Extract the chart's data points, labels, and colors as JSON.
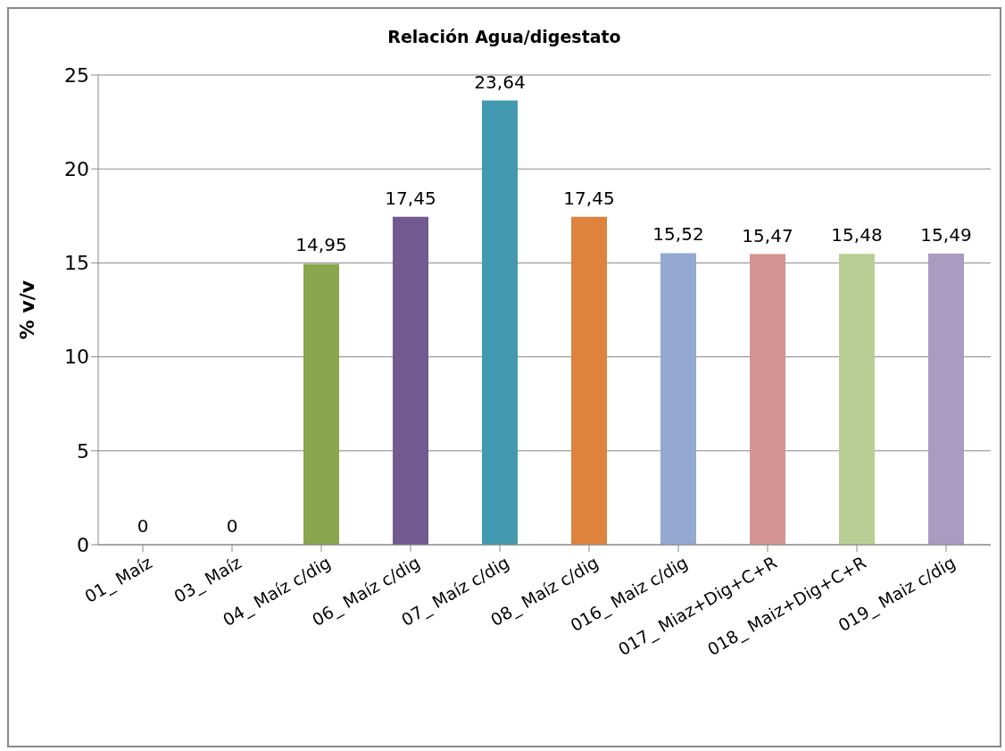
{
  "chart_data": {
    "type": "bar",
    "title": "Relación Agua/digestato",
    "ylabel": "% v/v",
    "categories": [
      "01_ Maíz",
      "03_ Maíz",
      "04_ Maíz c/dig",
      "06_ Maíz c/dig",
      "07_ Maíz c/dig",
      "08_ Maíz c/dig",
      "016_ Maiz c/dig",
      "017_ Miaz+Dig+C+R",
      "018_ Maiz+Dig+C+R",
      "019_ Maiz c/dig"
    ],
    "values": [
      0,
      0,
      14.95,
      17.45,
      23.64,
      17.45,
      15.52,
      15.47,
      15.48,
      15.49
    ],
    "value_labels": [
      "0",
      "0",
      "14,95",
      "17,45",
      "23,64",
      "17,45",
      "15,52",
      "15,47",
      "15,48",
      "15,49"
    ],
    "colors": [
      "#4f81bd",
      "#c0504d",
      "#8aa64e",
      "#72598f",
      "#4299b0",
      "#dd833e",
      "#94a9d1",
      "#d39392",
      "#b9ce95",
      "#aa9bc0"
    ],
    "ylim": [
      0,
      25
    ],
    "yticks": [
      0,
      5,
      10,
      15,
      20,
      25
    ],
    "grid": "y",
    "legend": false
  }
}
